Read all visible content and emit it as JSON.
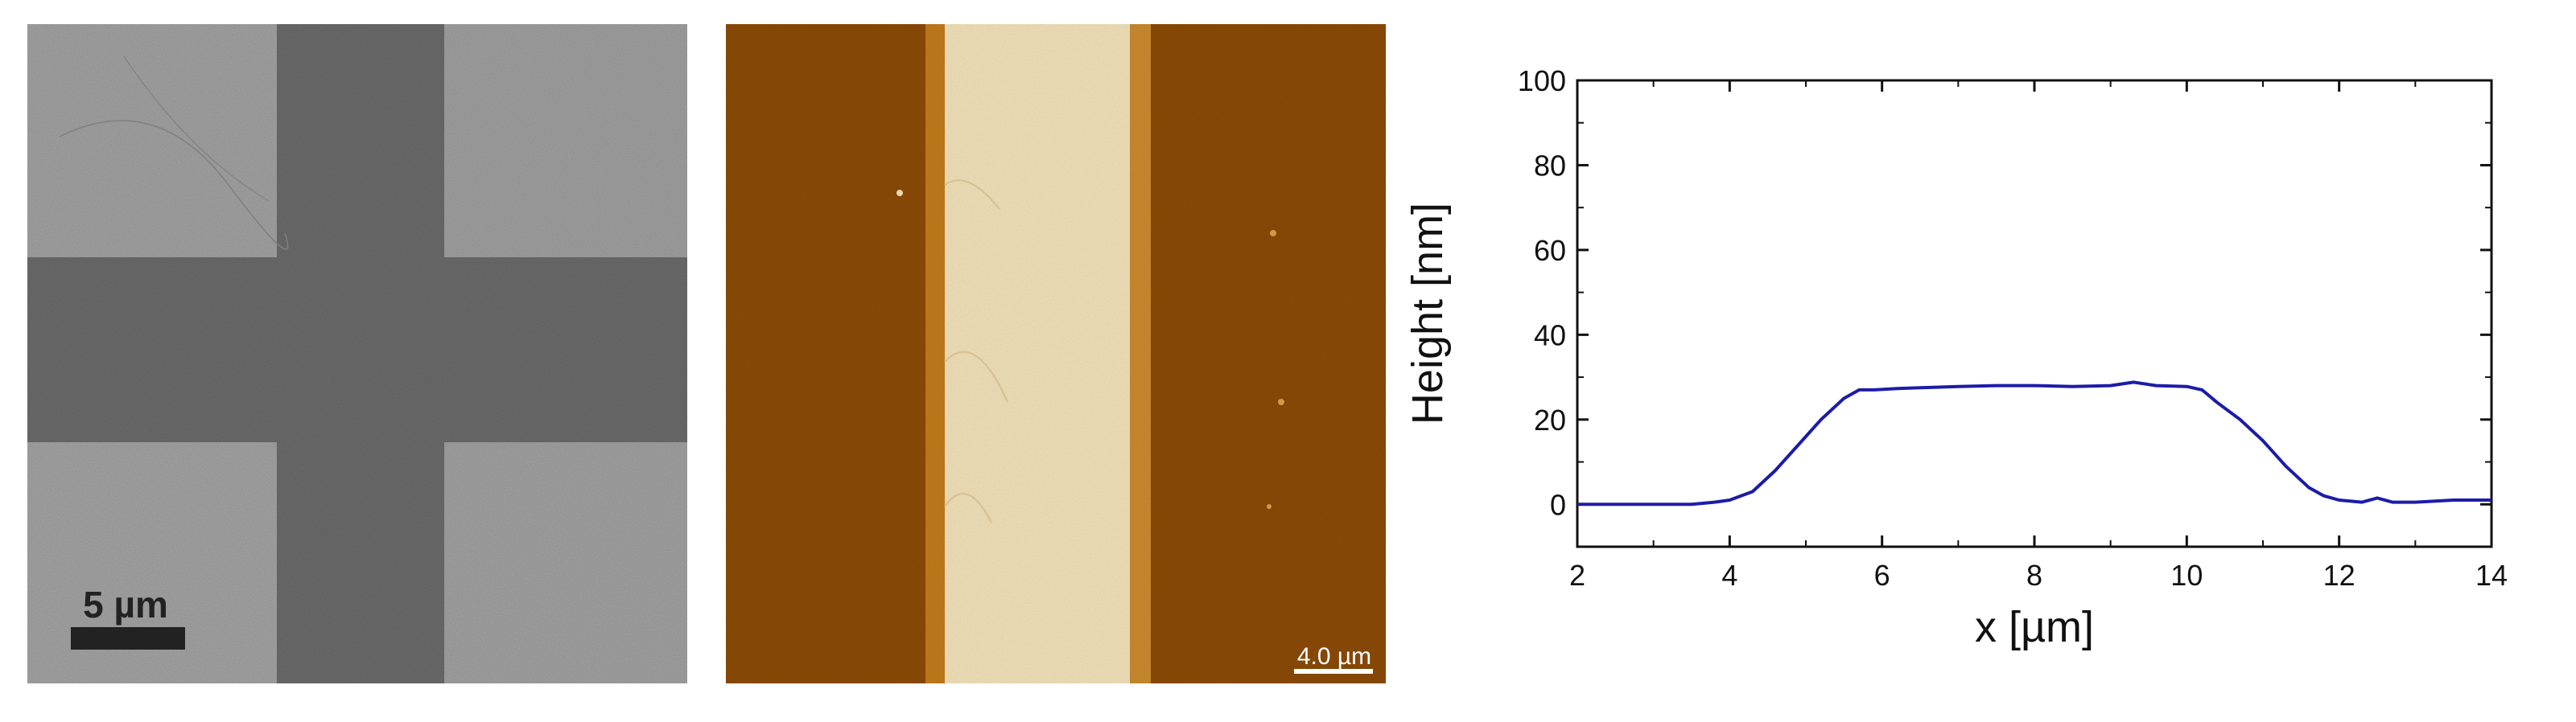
{
  "sem_panel": {
    "scale_label": "5 µm",
    "colors": {
      "background": "#a3a3a3",
      "cross": "#6e6e6e",
      "scalebar": "#222222"
    }
  },
  "afm_panel": {
    "scale_label": "4.0 µm",
    "colors": {
      "dark": "#8a4a06",
      "edge": "#c07a1a",
      "light": "#f0e0b8",
      "scalebar": "#ffffff"
    }
  },
  "chart_data": {
    "type": "line",
    "title": "",
    "xlabel": "x [µm]",
    "ylabel": "Height [nm]",
    "xlim": [
      2,
      14
    ],
    "ylim": [
      -10,
      100
    ],
    "xticks": [
      2,
      4,
      6,
      8,
      10,
      12,
      14
    ],
    "yticks": [
      0,
      20,
      40,
      60,
      80,
      100
    ],
    "grid": false,
    "legend": "none",
    "color": "#1c1ca8",
    "series": [
      {
        "x": [
          2.0,
          2.5,
          3.0,
          3.5,
          3.8,
          4.0,
          4.3,
          4.6,
          4.9,
          5.2,
          5.5,
          5.7,
          5.9,
          6.2,
          6.5,
          7.0,
          7.5,
          8.0,
          8.5,
          9.0,
          9.3,
          9.6,
          10.0,
          10.2,
          10.4,
          10.7,
          11.0,
          11.3,
          11.6,
          11.8,
          12.0,
          12.3,
          12.5,
          12.7,
          13.0,
          13.5,
          14.0
        ],
        "values": [
          0,
          0,
          0,
          0,
          0.5,
          1,
          3,
          8,
          14,
          20,
          25,
          27,
          27,
          27.3,
          27.5,
          27.8,
          28,
          28,
          27.8,
          28,
          28.8,
          28,
          27.8,
          27,
          24,
          20,
          15,
          9,
          4,
          2,
          1,
          0.5,
          1.5,
          0.5,
          0.5,
          1,
          1
        ]
      }
    ]
  }
}
